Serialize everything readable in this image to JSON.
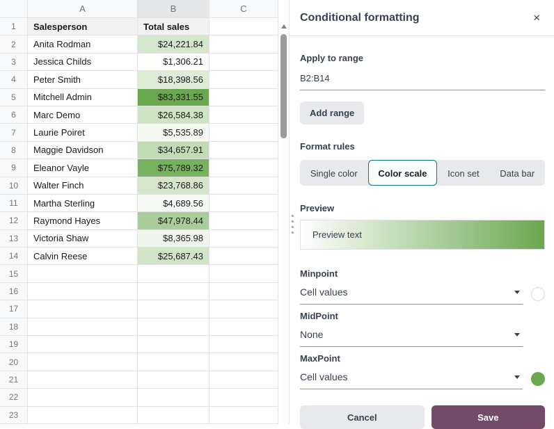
{
  "sheet": {
    "columns": [
      {
        "label": "A",
        "selected": false
      },
      {
        "label": "B",
        "selected": true
      },
      {
        "label": "C",
        "selected": false
      }
    ],
    "header_row": {
      "num": "1",
      "cells": [
        "Salesperson",
        "Total sales",
        ""
      ]
    },
    "data_rows": [
      {
        "num": "2",
        "name": "Anita Rodman",
        "value": "$24,221.84",
        "bg": "#d4e6cb"
      },
      {
        "num": "3",
        "name": "Jessica Childs",
        "value": "$1,306.21",
        "bg": "#fdfefc"
      },
      {
        "num": "4",
        "name": "Peter Smith",
        "value": "$18,398.56",
        "bg": "#deecd7"
      },
      {
        "num": "5",
        "name": "Mitchell Admin",
        "value": "$83,331.55",
        "bg": "#6aa84f"
      },
      {
        "num": "6",
        "name": "Marc Demo",
        "value": "$26,584.38",
        "bg": "#cfe3c6"
      },
      {
        "num": "7",
        "name": "Laurie Poiret",
        "value": "$5,535.89",
        "bg": "#f5f9f2"
      },
      {
        "num": "8",
        "name": "Maggie Davidson",
        "value": "$34,657.91",
        "bg": "#c1dbb5"
      },
      {
        "num": "9",
        "name": "Eleanor Vayle",
        "value": "$75,789.32",
        "bg": "#77b05f"
      },
      {
        "num": "10",
        "name": "Walter Finch",
        "value": "$23,768.86",
        "bg": "#d5e6cd"
      },
      {
        "num": "11",
        "name": "Martha Sterling",
        "value": "$4,689.56",
        "bg": "#f6faf4"
      },
      {
        "num": "12",
        "name": "Raymond Hayes",
        "value": "$47,978.44",
        "bg": "#a9cd99"
      },
      {
        "num": "13",
        "name": "Victoria Shaw",
        "value": "$8,365.98",
        "bg": "#f0f6ec"
      },
      {
        "num": "14",
        "name": "Calvin Reese",
        "value": "$25,687.43",
        "bg": "#d1e4c8"
      }
    ],
    "empty_row_numbers": [
      "15",
      "16",
      "17",
      "18",
      "19",
      "20",
      "21",
      "22",
      "23"
    ]
  },
  "panel": {
    "title": "Conditional formatting",
    "close_icon": "×",
    "apply_to_range": {
      "label": "Apply to range",
      "value": "B2:B14"
    },
    "add_range_label": "Add range",
    "format_rules": {
      "label": "Format rules",
      "options": [
        "Single color",
        "Color scale",
        "Icon set",
        "Data bar"
      ],
      "selected": "Color scale"
    },
    "preview": {
      "label": "Preview",
      "text": "Preview text",
      "gradient_from": "#ffffff",
      "gradient_to": "#6aa84f"
    },
    "minpoint": {
      "label": "Minpoint",
      "value": "Cell values",
      "swatch_color": "#ffffff"
    },
    "midpoint": {
      "label": "MidPoint",
      "value": "None"
    },
    "maxpoint": {
      "label": "MaxPoint",
      "value": "Cell values",
      "swatch_color": "#6aa84f"
    },
    "buttons": {
      "cancel": "Cancel",
      "save": "Save"
    }
  },
  "colors": {
    "accent_teal": "#0e797f",
    "primary_purple": "#714b67",
    "scale_max_green": "#6aa84f",
    "selected_column_header": "#e5e6e7"
  }
}
